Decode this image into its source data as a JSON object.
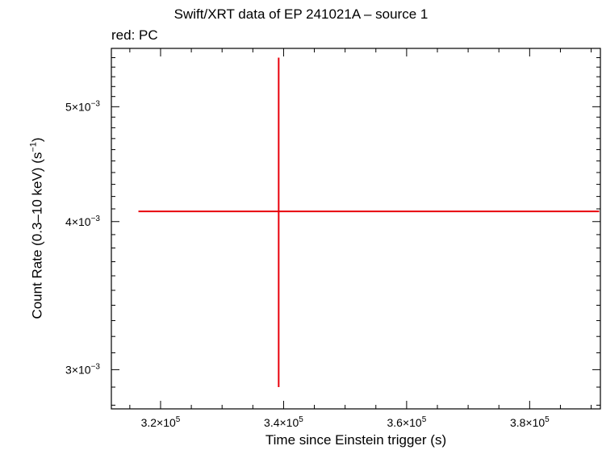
{
  "chart_data": {
    "type": "scatter",
    "title": "Swift/XRT data of EP 241021A – source 1",
    "subtitle": "red: PC",
    "xlabel": "Time since Einstein trigger (s)",
    "ylabel_main": "Count Rate (0.3–10 keV) (s",
    "ylabel_sup": "−1",
    "ylabel_end": ")",
    "xlim": [
      312000,
      391500
    ],
    "ylim_log": [
      0.00278,
      0.0056
    ],
    "x_ticks": [
      {
        "value": 320000,
        "mantissa": "3.2×10",
        "exp": "5"
      },
      {
        "value": 340000,
        "mantissa": "3.4×10",
        "exp": "5"
      },
      {
        "value": 360000,
        "mantissa": "3.6×10",
        "exp": "5"
      },
      {
        "value": 380000,
        "mantissa": "3.8×10",
        "exp": "5"
      }
    ],
    "y_ticks": [
      {
        "value": 0.003,
        "mantissa": "3×10",
        "exp": "−3"
      },
      {
        "value": 0.004,
        "mantissa": "4×10",
        "exp": "−3"
      },
      {
        "value": 0.005,
        "mantissa": "5×10",
        "exp": "−3"
      }
    ],
    "series": [
      {
        "color": "#e8000b",
        "points": [
          {
            "x": 339200,
            "xerr_low": 22800,
            "xerr_high": 52100,
            "y": 0.00408,
            "yerr_low": 0.00118,
            "yerr_high": 0.00142
          }
        ]
      }
    ]
  }
}
